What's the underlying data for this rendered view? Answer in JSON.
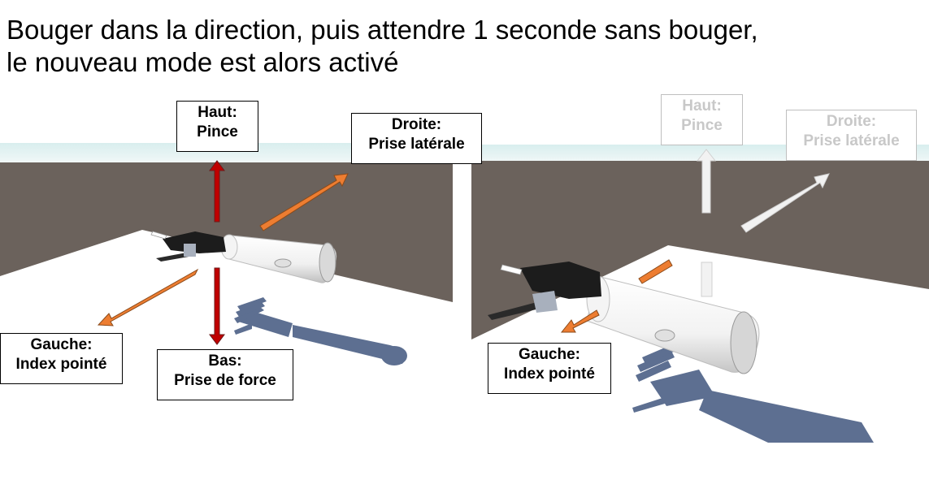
{
  "heading": {
    "line1": "Bouger dans la direction, puis attendre 1 seconde sans bouger,",
    "line2": "le nouveau mode est alors activé"
  },
  "left_panel": {
    "labels": {
      "up": {
        "line1": "Haut:",
        "line2": "Pince"
      },
      "right": {
        "line1": "Droite:",
        "line2": "Prise latérale"
      },
      "left": {
        "line1": "Gauche:",
        "line2": "Index pointé"
      },
      "down": {
        "line1": "Bas:",
        "line2": "Prise de force"
      }
    }
  },
  "right_panel": {
    "labels": {
      "up": {
        "line1": "Haut:",
        "line2": "Pince"
      },
      "right": {
        "line1": "Droite:",
        "line2": "Prise latérale"
      },
      "left": {
        "line1": "Gauche:",
        "line2": "Index pointé"
      }
    }
  },
  "colors": {
    "arrow_up_down": "#c00000",
    "arrow_diagonal": "#ed7d31",
    "arrow_faded": "#f2f2f2",
    "floor": "#6b625c",
    "sky": "#e8f4f4",
    "ground_plane": "#ffffff",
    "shadow": "#5d6f91"
  }
}
